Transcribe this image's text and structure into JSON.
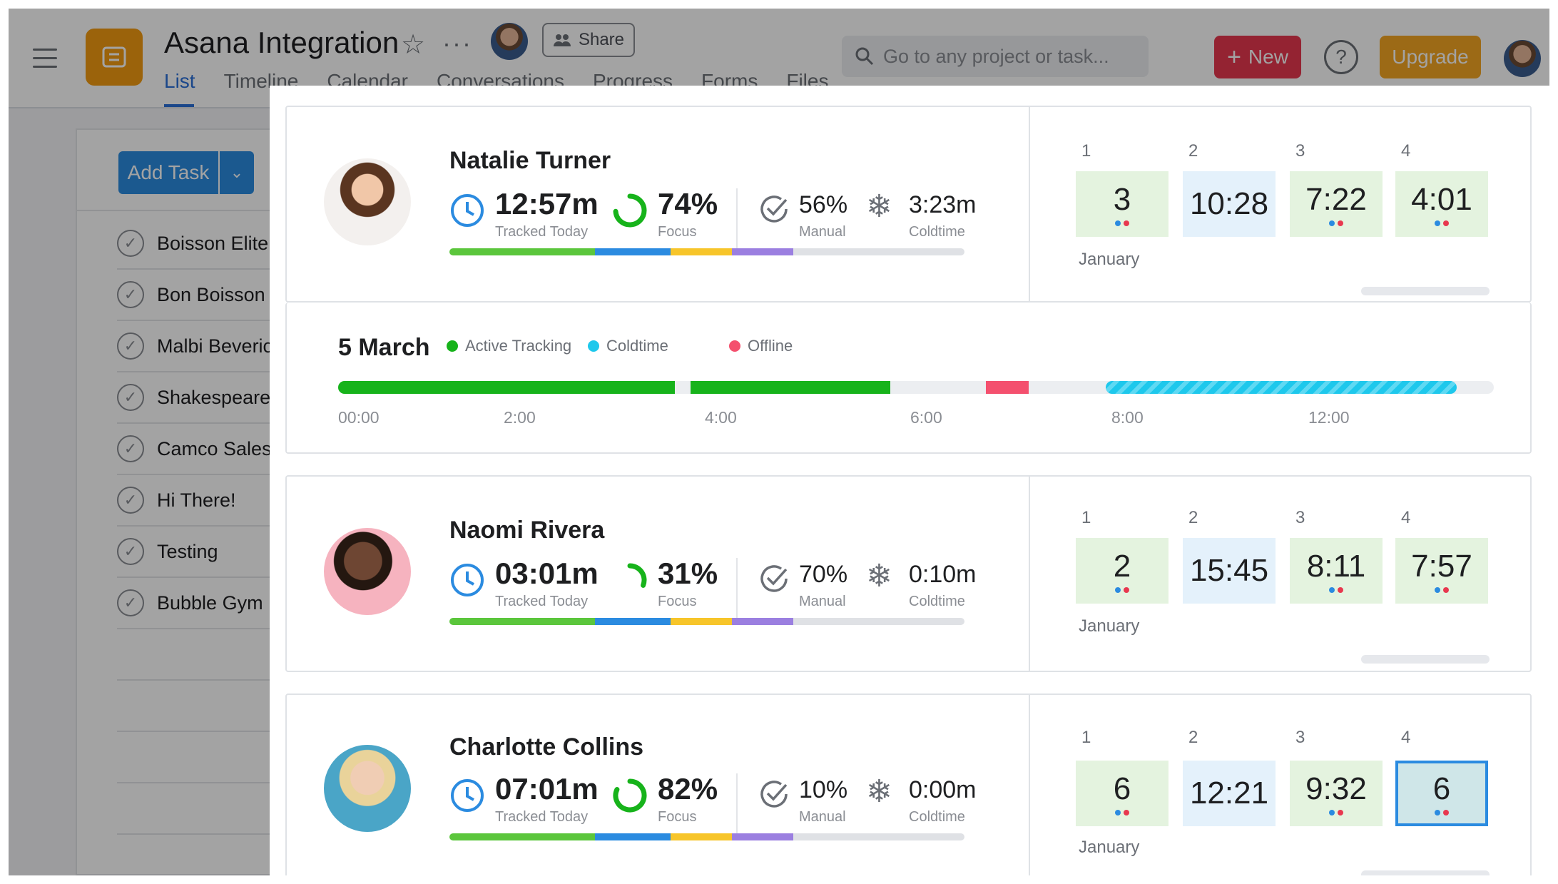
{
  "header": {
    "project_title": "Asana Integration",
    "share_label": "Share",
    "tabs": [
      {
        "label": "List",
        "active": true
      },
      {
        "label": "Timeline",
        "active": false
      },
      {
        "label": "Calendar",
        "active": false
      },
      {
        "label": "Conversations",
        "active": false
      },
      {
        "label": "Progress",
        "active": false
      },
      {
        "label": "Forms",
        "active": false
      },
      {
        "label": "Files",
        "active": false
      }
    ],
    "search_placeholder": "Go to any project or task...",
    "new_label": "New",
    "help_label": "?",
    "upgrade_label": "Upgrade"
  },
  "task_list": {
    "add_task_label": "Add Task",
    "tasks": [
      "Boisson Elite I",
      "Bon Boisson",
      "Malbi Beveric",
      "Shakespeare I",
      "Camco Sales I",
      "Hi There!",
      "Testing",
      "Bubble Gym"
    ]
  },
  "labels": {
    "tracked_today": "Tracked Today",
    "focus": "Focus",
    "manual": "Manual",
    "coldtime": "Coldtime"
  },
  "people": [
    {
      "name": "Natalie Turner",
      "tracked": "12:57m",
      "focus_pct": "74%",
      "focus_value": 0.74,
      "manual_pct": "56%",
      "coldtime": "3:23m",
      "month": "January",
      "days": [
        {
          "num": "1",
          "value": "3",
          "style": "green",
          "dots": true
        },
        {
          "num": "2",
          "value": "10:28",
          "style": "blue",
          "dots": false
        },
        {
          "num": "3",
          "value": "7:22",
          "style": "green",
          "dots": true
        },
        {
          "num": "4",
          "value": "4:01",
          "style": "green",
          "dots": true
        }
      ]
    },
    {
      "name": "Naomi Rivera",
      "tracked": "03:01m",
      "focus_pct": "31%",
      "focus_value": 0.31,
      "manual_pct": "70%",
      "coldtime": "0:10m",
      "month": "January",
      "days": [
        {
          "num": "1",
          "value": "2",
          "style": "green",
          "dots": true
        },
        {
          "num": "2",
          "value": "15:45",
          "style": "blue",
          "dots": false
        },
        {
          "num": "3",
          "value": "8:11",
          "style": "green",
          "dots": true
        },
        {
          "num": "4",
          "value": "7:57",
          "style": "green",
          "dots": true
        }
      ]
    },
    {
      "name": "Charlotte Collins",
      "tracked": "07:01m",
      "focus_pct": "82%",
      "focus_value": 0.82,
      "manual_pct": "10%",
      "coldtime": "0:00m",
      "month": "January",
      "days": [
        {
          "num": "1",
          "value": "6",
          "style": "green",
          "dots": true
        },
        {
          "num": "2",
          "value": "12:21",
          "style": "blue",
          "dots": false
        },
        {
          "num": "3",
          "value": "9:32",
          "style": "green",
          "dots": true
        },
        {
          "num": "4",
          "value": "6",
          "style": "selected",
          "dots": true
        }
      ]
    }
  ],
  "timeline": {
    "date": "5 March",
    "legend": [
      {
        "label": "Active Tracking",
        "color": "#17b31b"
      },
      {
        "label": "Coldtime",
        "color": "#1ec8ec"
      },
      {
        "label": "Offline",
        "color": "#f4506e"
      }
    ],
    "ticks": [
      "00:00",
      "2:00",
      "4:00",
      "6:00",
      "8:00",
      "12:00"
    ]
  },
  "colors": {
    "progress_segments": [
      "#5bc63c",
      "#2b8be0",
      "#f7c52a",
      "#9b7fe0",
      "#dfe1e5"
    ],
    "dot_blue": "#2b8be0",
    "dot_red": "#e8384f",
    "focus_ring": "#17b31b",
    "clock_blue": "#2b8be0"
  }
}
